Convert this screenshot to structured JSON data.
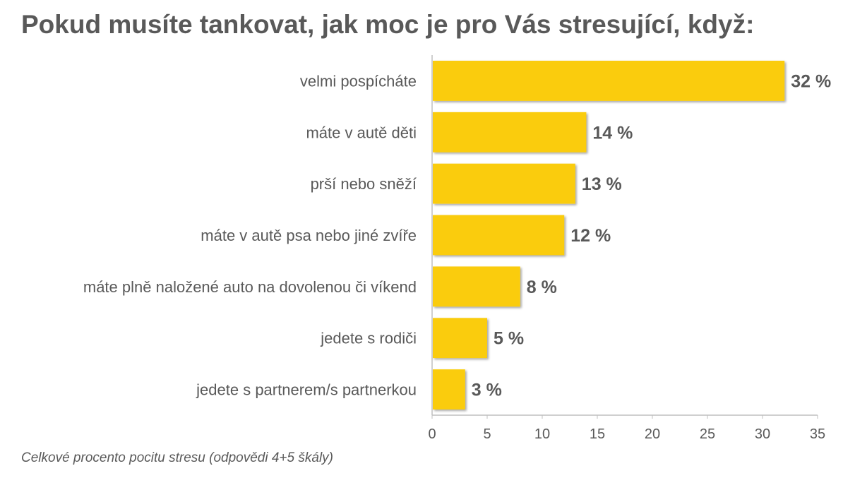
{
  "chart_data": {
    "type": "bar",
    "orientation": "horizontal",
    "title": "Pokud musíte tankovat, jak moc je pro Vás stresující, když:",
    "footnote": "Celkové procento pocitu stresu (odpovědi 4+5 škály)",
    "categories": [
      "velmi pospícháte",
      "máte v autě děti",
      "prší nebo sněží",
      "máte v autě psa nebo jiné zvíře",
      "máte plně naložené auto na dovolenou či víkend",
      "jedete s rodiči",
      "jedete s partnerem/s partnerkou"
    ],
    "values": [
      32,
      14,
      13,
      12,
      8,
      5,
      3
    ],
    "value_labels": [
      "32 %",
      "14 %",
      "13 %",
      "12 %",
      "8 %",
      "5 %",
      "3 %"
    ],
    "xlim": [
      0,
      35
    ],
    "xticks": [
      "0",
      "5",
      "10",
      "15",
      "20",
      "25",
      "30",
      "35"
    ],
    "grid": false,
    "legend": "none",
    "colors": {
      "bar": "#FACC09",
      "bar_shadow": "#b8b8b8",
      "axis": "#bfbfbf",
      "text": "#595959"
    }
  }
}
